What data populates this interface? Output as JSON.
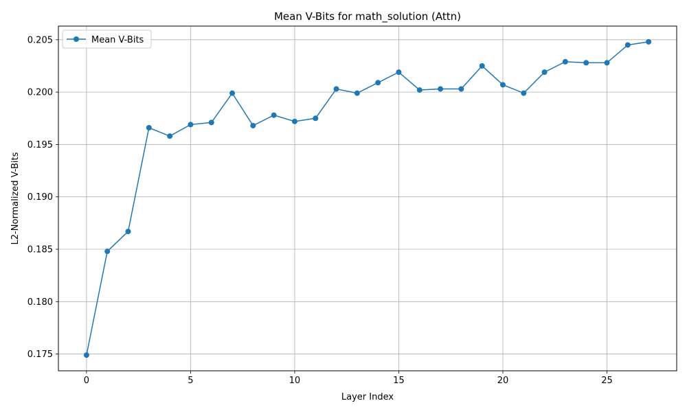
{
  "chart_data": {
    "type": "line",
    "title": "Mean V-Bits for math_solution (Attn)",
    "xlabel": "Layer Index",
    "ylabel": "L2-Normalized V-Bits",
    "xlim": [
      -1.35,
      28.35
    ],
    "ylim": [
      0.1734,
      0.2063
    ],
    "x_ticks": [
      0,
      5,
      10,
      15,
      20,
      25
    ],
    "y_ticks": [
      0.175,
      0.18,
      0.185,
      0.19,
      0.195,
      0.2,
      0.205
    ],
    "x_tick_labels": [
      "0",
      "5",
      "10",
      "15",
      "20",
      "25"
    ],
    "y_tick_labels": [
      "0.175",
      "0.180",
      "0.185",
      "0.190",
      "0.195",
      "0.200",
      "0.205"
    ],
    "grid": true,
    "legend_position": "top-left",
    "series": [
      {
        "name": "Mean V-Bits",
        "color": "#1f77b4",
        "marker": "circle",
        "x": [
          0,
          1,
          2,
          3,
          4,
          5,
          6,
          7,
          8,
          9,
          10,
          11,
          12,
          13,
          14,
          15,
          16,
          17,
          18,
          19,
          20,
          21,
          22,
          23,
          24,
          25,
          26,
          27
        ],
        "y": [
          0.1749,
          0.1848,
          0.1867,
          0.1966,
          0.1958,
          0.1969,
          0.1971,
          0.1999,
          0.1968,
          0.1978,
          0.1972,
          0.1975,
          0.2003,
          0.1999,
          0.2009,
          0.2019,
          0.2002,
          0.2003,
          0.2003,
          0.2025,
          0.2007,
          0.1999,
          0.2019,
          0.2029,
          0.2028,
          0.2028,
          0.2045,
          0.2048
        ]
      }
    ]
  }
}
